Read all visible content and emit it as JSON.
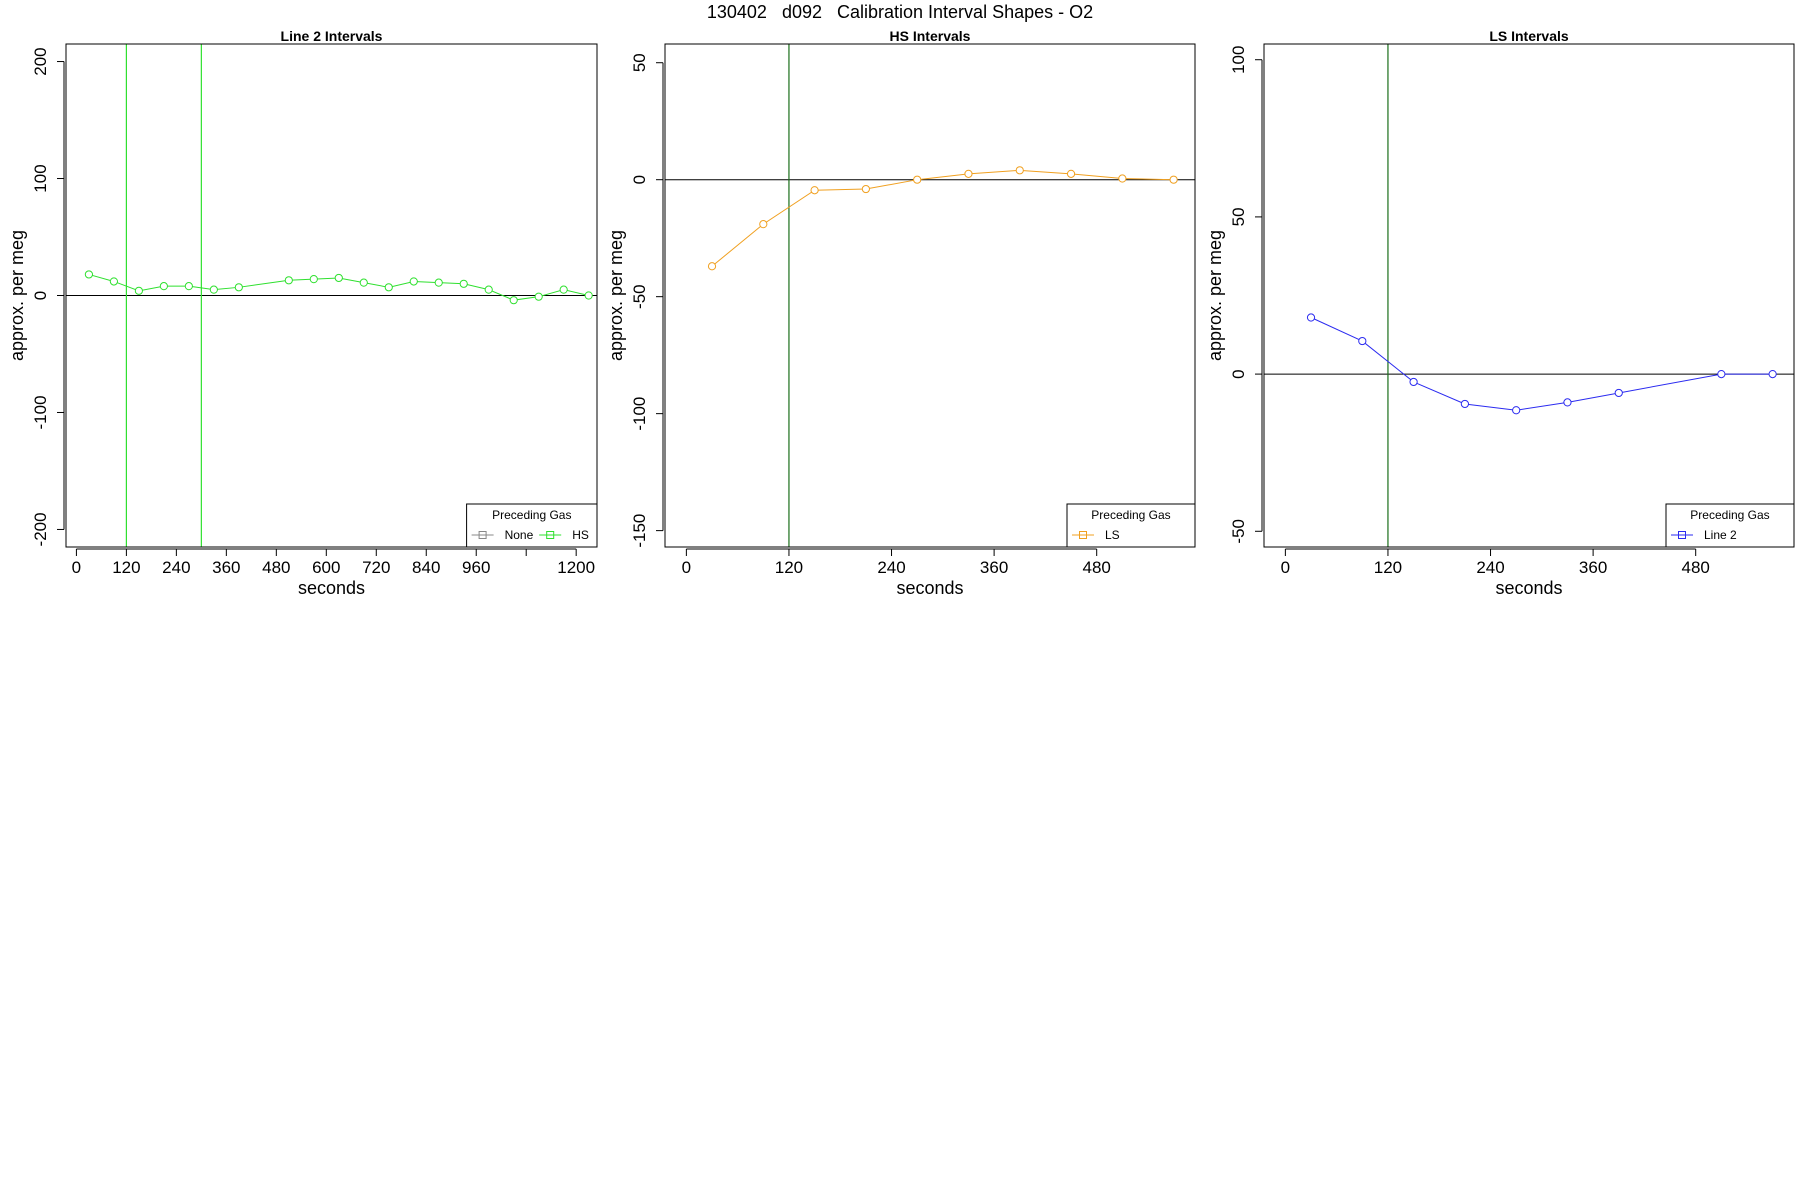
{
  "page": {
    "title": "130402   d092   Calibration Interval Shapes - O2"
  },
  "colors": {
    "green": "#2ee02e",
    "orange": "#f0a020",
    "blue": "#2b2bf0",
    "dark_green": "#1a6e1a",
    "gray": "#888888"
  },
  "chart_data": [
    {
      "type": "line",
      "title": "Line 2 Intervals",
      "xlabel": "seconds",
      "ylabel": "approx. per meg",
      "xlim": [
        -25,
        1250
      ],
      "ylim": [
        -215,
        215
      ],
      "xticks": [
        0,
        120,
        240,
        360,
        480,
        600,
        720,
        840,
        960,
        1080,
        1200
      ],
      "xtick_labels": [
        "0",
        "120",
        "240",
        "360",
        "480",
        "600",
        "720",
        "840",
        "960",
        "",
        "1200"
      ],
      "yticks": [
        -200,
        -100,
        0,
        100,
        200
      ],
      "ytick_labels": [
        "-200",
        "-100",
        "0",
        "100",
        "200"
      ],
      "hline": 0,
      "vlines": [
        {
          "x": 120,
          "color": "#2ee02e"
        },
        {
          "x": 300,
          "color": "#2ee02e"
        }
      ],
      "series": [
        {
          "name": "HS",
          "color": "#2ee02e",
          "x": [
            30,
            90,
            150,
            210,
            270,
            330,
            390,
            510,
            570,
            630,
            690,
            750,
            810,
            870,
            930,
            990,
            1050,
            1110,
            1170,
            1230
          ],
          "y": [
            18,
            12,
            4,
            8,
            8,
            5,
            7,
            13,
            14,
            15,
            11,
            7,
            12,
            11,
            10,
            5,
            -4,
            -1,
            5,
            0
          ]
        }
      ],
      "legend": {
        "title": "Preceding Gas",
        "position": "bottom-right",
        "entries": [
          {
            "label": "None",
            "color": "#888888"
          },
          {
            "label": "HS",
            "color": "#2ee02e"
          }
        ]
      }
    },
    {
      "type": "line",
      "title": "HS Intervals",
      "xlabel": "seconds",
      "ylabel": "approx. per meg",
      "xlim": [
        -25,
        595
      ],
      "ylim": [
        -157,
        58
      ],
      "xticks": [
        0,
        120,
        240,
        360,
        480
      ],
      "xtick_labels": [
        "0",
        "120",
        "240",
        "360",
        "480"
      ],
      "yticks": [
        -150,
        -100,
        -50,
        0,
        50
      ],
      "ytick_labels": [
        "-150",
        "-100",
        "-50",
        "0",
        "50"
      ],
      "hline": 0,
      "vlines": [
        {
          "x": 120,
          "color": "#1a6e1a"
        }
      ],
      "series": [
        {
          "name": "LS",
          "color": "#f0a020",
          "x": [
            30,
            90,
            150,
            210,
            270,
            330,
            390,
            450,
            510,
            570
          ],
          "y": [
            -37,
            -19,
            -4.5,
            -4,
            0,
            2.5,
            4,
            2.5,
            0.5,
            0
          ]
        }
      ],
      "legend": {
        "title": "Preceding Gas",
        "position": "bottom-right",
        "entries": [
          {
            "label": "LS",
            "color": "#f0a020"
          }
        ]
      }
    },
    {
      "type": "line",
      "title": "LS Intervals",
      "xlabel": "seconds",
      "ylabel": "approx. per meg",
      "xlim": [
        -25,
        595
      ],
      "ylim": [
        -55,
        105
      ],
      "xticks": [
        0,
        120,
        240,
        360,
        480
      ],
      "xtick_labels": [
        "0",
        "120",
        "240",
        "360",
        "480"
      ],
      "yticks": [
        -50,
        0,
        50,
        100
      ],
      "ytick_labels": [
        "-50",
        "0",
        "50",
        "100"
      ],
      "hline": 0,
      "vlines": [
        {
          "x": 120,
          "color": "#1a6e1a"
        }
      ],
      "series": [
        {
          "name": "Line 2",
          "color": "#2b2bf0",
          "x": [
            30,
            90,
            150,
            210,
            270,
            330,
            390,
            510,
            570
          ],
          "y": [
            18,
            10.5,
            -2.5,
            -9.5,
            -11.5,
            -9,
            -6,
            0,
            0
          ]
        }
      ],
      "legend": {
        "title": "Preceding Gas",
        "position": "bottom-right",
        "entries": [
          {
            "label": "Line 2",
            "color": "#2b2bf0"
          }
        ]
      }
    }
  ]
}
